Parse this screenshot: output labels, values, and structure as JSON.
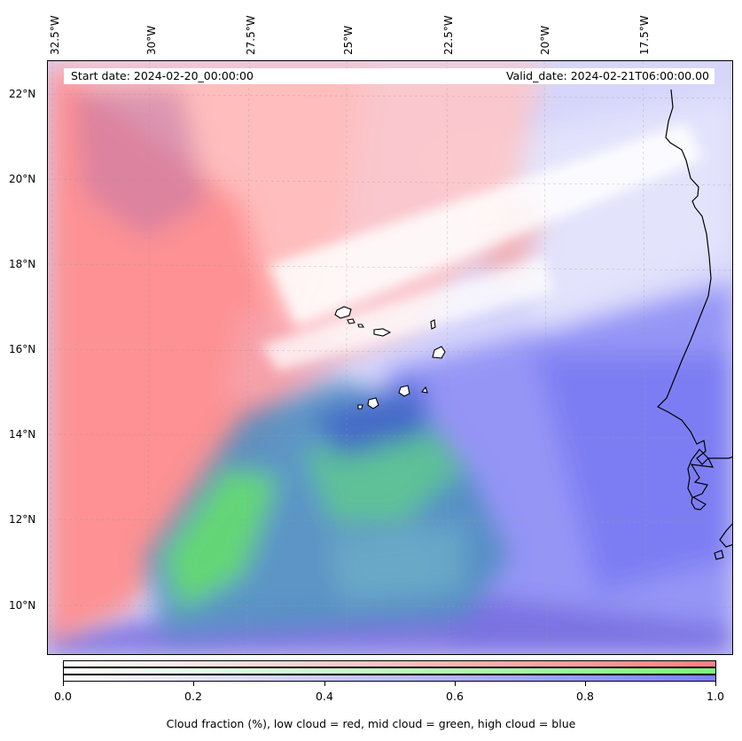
{
  "map": {
    "title_start": "Start date: 2024-02-20_00:00:00",
    "title_valid": "Valid_date: 2024-02-21T06:00:00.00",
    "lon_labels": [
      "32.5°W",
      "30°W",
      "27.5°W",
      "25°W",
      "22.5°W",
      "20°W",
      "17.5°W"
    ],
    "lat_labels": [
      "22°N",
      "20°N",
      "18°N",
      "16°N",
      "14°N",
      "12°N",
      "10°N"
    ],
    "colors": {
      "low_cloud": "#ff7f7f",
      "mid_cloud": "#6fe06f",
      "high_cloud": "#7f7fff",
      "coastline": "#000000"
    }
  },
  "colorbar": {
    "ticks": [
      "0.0",
      "0.2",
      "0.4",
      "0.6",
      "0.8",
      "1.0"
    ],
    "label": "Cloud fraction (%), low cloud = red, mid cloud = green, high cloud = blue"
  }
}
